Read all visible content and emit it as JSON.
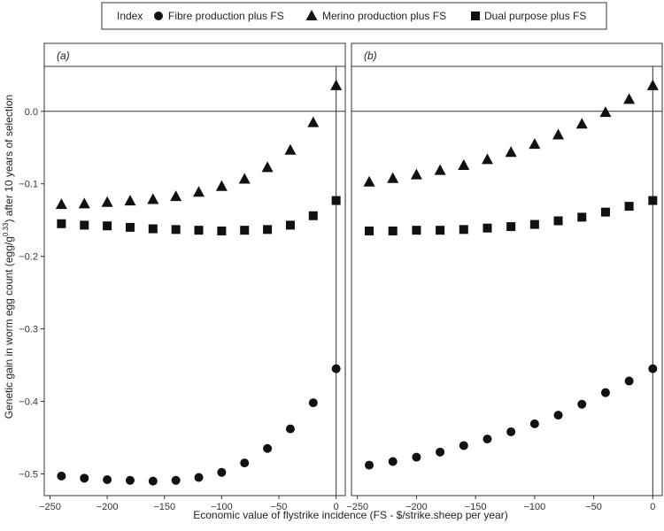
{
  "chart_data": {
    "type": "scatter",
    "legend": {
      "title": "Index",
      "position": "top",
      "entries": [
        {
          "name": "Fibre production plus FS",
          "marker": "circle"
        },
        {
          "name": "Merino production plus FS",
          "marker": "triangle"
        },
        {
          "name": "Dual purpose plus FS",
          "marker": "square"
        }
      ]
    },
    "xlabel": "Economic value of flystrike incidence (FS - $/strike.sheep per year)",
    "ylabel": {
      "prefix": "Genetic gain in worm egg count (egg/g",
      "superscript": "0.33",
      "suffix": ") after 10 years of selection"
    },
    "xlim": [
      -255,
      8
    ],
    "ylim": [
      -0.53,
      0.062
    ],
    "xticks": [
      -250,
      -200,
      -150,
      -100,
      -50,
      0
    ],
    "yticks": [
      0.0,
      -0.1,
      -0.2,
      -0.3,
      -0.4,
      -0.5
    ],
    "xtick_labels": [
      "−250",
      "−200",
      "−150",
      "−100",
      "−50",
      "0"
    ],
    "ytick_labels": [
      "0.0",
      "−0.1",
      "−0.2",
      "−0.3",
      "−0.4",
      "−0.5"
    ],
    "reference_lines": {
      "x": 0,
      "y": 0
    },
    "grid": false,
    "x": [
      -240,
      -220,
      -200,
      -180,
      -160,
      -140,
      -120,
      -100,
      -80,
      -60,
      -40,
      -20,
      0
    ],
    "panels": [
      {
        "label": "(a)",
        "series": [
          {
            "name": "Fibre production plus FS",
            "marker": "circle",
            "values": [
              -0.503,
              -0.506,
              -0.508,
              -0.509,
              -0.51,
              -0.509,
              -0.505,
              -0.498,
              -0.485,
              -0.465,
              -0.438,
              -0.402,
              -0.355
            ]
          },
          {
            "name": "Merino production plus FS",
            "marker": "triangle",
            "values": [
              -0.128,
              -0.127,
              -0.125,
              -0.123,
              -0.121,
              -0.117,
              -0.111,
              -0.103,
              -0.093,
              -0.077,
              -0.053,
              -0.015,
              0.036
            ]
          },
          {
            "name": "Dual purpose plus FS",
            "marker": "square",
            "values": [
              -0.155,
              -0.157,
              -0.158,
              -0.16,
              -0.162,
              -0.163,
              -0.164,
              -0.165,
              -0.164,
              -0.163,
              -0.157,
              -0.144,
              -0.123
            ]
          }
        ]
      },
      {
        "label": "(b)",
        "series": [
          {
            "name": "Fibre production plus FS",
            "marker": "circle",
            "values": [
              -0.488,
              -0.483,
              -0.477,
              -0.47,
              -0.461,
              -0.452,
              -0.442,
              -0.431,
              -0.419,
              -0.404,
              -0.388,
              -0.372,
              -0.355
            ]
          },
          {
            "name": "Merino production plus FS",
            "marker": "triangle",
            "values": [
              -0.097,
              -0.092,
              -0.087,
              -0.081,
              -0.074,
              -0.066,
              -0.056,
              -0.045,
              -0.032,
              -0.017,
              -0.001,
              0.017,
              0.036
            ]
          },
          {
            "name": "Dual purpose plus FS",
            "marker": "square",
            "values": [
              -0.165,
              -0.165,
              -0.164,
              -0.164,
              -0.163,
              -0.161,
              -0.159,
              -0.156,
              -0.151,
              -0.146,
              -0.139,
              -0.131,
              -0.123
            ]
          }
        ]
      }
    ]
  }
}
